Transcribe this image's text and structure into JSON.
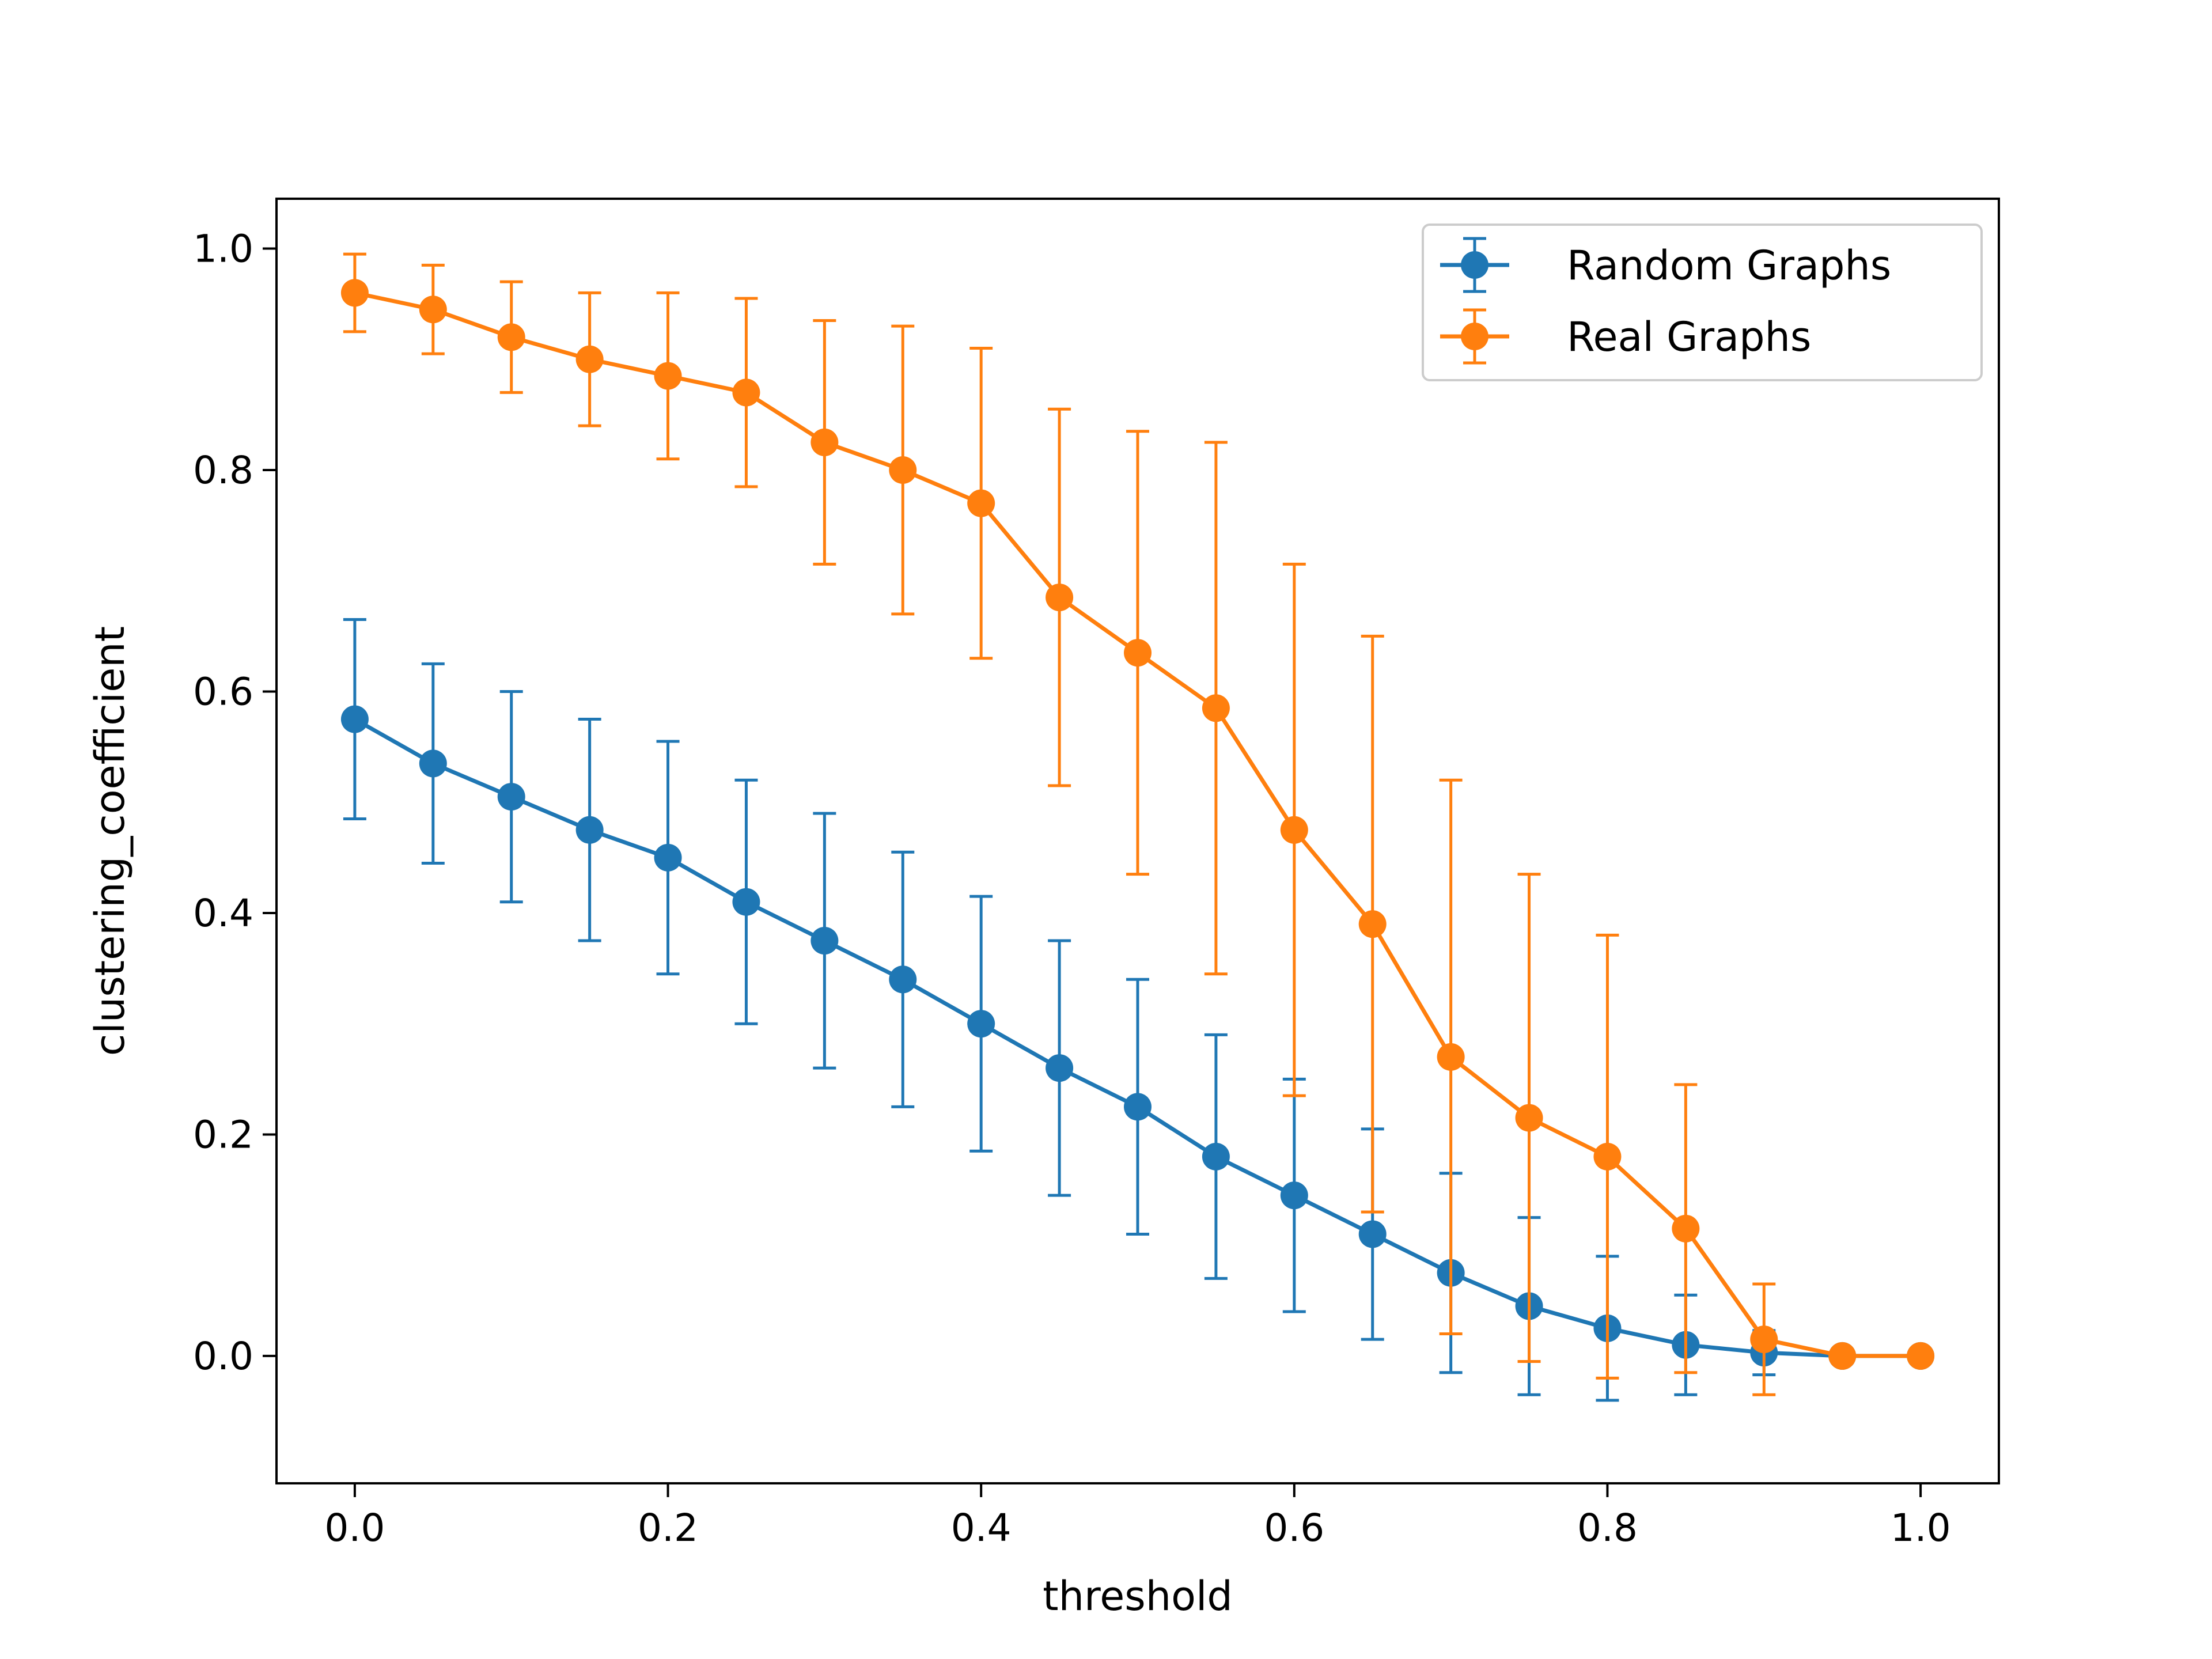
{
  "chart_data": {
    "type": "line",
    "title": "",
    "xlabel": "threshold",
    "ylabel": "clustering_coefficient",
    "xlim": [
      -0.05,
      1.05
    ],
    "ylim": [
      -0.115,
      1.045
    ],
    "xticks": [
      0.0,
      0.2,
      0.4,
      0.6,
      0.8,
      1.0
    ],
    "xtick_labels": [
      "0.0",
      "0.2",
      "0.4",
      "0.6",
      "0.8",
      "1.0"
    ],
    "yticks": [
      0.0,
      0.2,
      0.4,
      0.6,
      0.8,
      1.0
    ],
    "ytick_labels": [
      "0.0",
      "0.2",
      "0.4",
      "0.6",
      "0.8",
      "1.0"
    ],
    "grid": false,
    "legend_position": "top-right",
    "error_bars": true,
    "x": [
      0.0,
      0.05,
      0.1,
      0.15,
      0.2,
      0.25,
      0.3,
      0.35,
      0.4,
      0.45,
      0.5,
      0.55,
      0.6,
      0.65,
      0.7,
      0.75,
      0.8,
      0.85,
      0.9,
      0.95,
      1.0
    ],
    "series": [
      {
        "name": "Random Graphs",
        "color": "#1f77b4",
        "values": [
          0.575,
          0.535,
          0.505,
          0.475,
          0.45,
          0.41,
          0.375,
          0.34,
          0.3,
          0.26,
          0.225,
          0.18,
          0.145,
          0.11,
          0.075,
          0.045,
          0.025,
          0.01,
          0.003,
          0.0,
          0.0
        ],
        "errors": [
          0.09,
          0.09,
          0.095,
          0.1,
          0.105,
          0.11,
          0.115,
          0.115,
          0.115,
          0.115,
          0.115,
          0.11,
          0.105,
          0.095,
          0.09,
          0.08,
          0.065,
          0.045,
          0.02,
          0.0,
          0.0
        ]
      },
      {
        "name": "Real Graphs",
        "color": "#ff7f0e",
        "values": [
          0.96,
          0.945,
          0.92,
          0.9,
          0.885,
          0.87,
          0.825,
          0.8,
          0.77,
          0.685,
          0.635,
          0.585,
          0.475,
          0.39,
          0.27,
          0.215,
          0.18,
          0.115,
          0.015,
          0.0,
          0.0
        ],
        "errors": [
          0.035,
          0.04,
          0.05,
          0.06,
          0.075,
          0.085,
          0.11,
          0.13,
          0.14,
          0.17,
          0.2,
          0.24,
          0.24,
          0.26,
          0.25,
          0.22,
          0.2,
          0.13,
          0.05,
          0.0,
          0.0
        ]
      }
    ]
  }
}
